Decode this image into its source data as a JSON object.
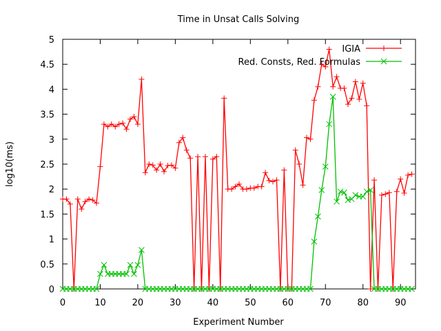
{
  "chart_data": {
    "type": "line",
    "title": "Time in Unsat Calls Solving",
    "xlabel": "Experiment Number",
    "ylabel": "log10(ms)",
    "xlim": [
      0,
      94
    ],
    "ylim": [
      0,
      5
    ],
    "xticks": [
      0,
      10,
      20,
      30,
      40,
      50,
      60,
      70,
      80,
      90
    ],
    "yticks": [
      0,
      0.5,
      1,
      1.5,
      2,
      2.5,
      3,
      3.5,
      4,
      4.5,
      5
    ],
    "ytick_labels": [
      "0",
      "0.5",
      "1",
      "1.5",
      "2",
      "2.5",
      "3",
      "3.5",
      "4",
      "4.5",
      "5"
    ],
    "grid": false,
    "legend_position": "top-right",
    "series": [
      {
        "name": "IGIA",
        "color": "#ff0000",
        "marker": "plus",
        "x": [
          0,
          1,
          2,
          3,
          4,
          5,
          6,
          7,
          8,
          9,
          10,
          11,
          12,
          13,
          14,
          15,
          16,
          17,
          18,
          19,
          20,
          21,
          22,
          23,
          24,
          25,
          26,
          27,
          28,
          29,
          30,
          31,
          32,
          33,
          34,
          35,
          36,
          37,
          38,
          39,
          40,
          41,
          42,
          43,
          44,
          45,
          46,
          47,
          48,
          49,
          50,
          51,
          52,
          53,
          54,
          55,
          56,
          57,
          58,
          59,
          60,
          61,
          62,
          63,
          64,
          65,
          66,
          67,
          68,
          69,
          70,
          71,
          72,
          73,
          74,
          75,
          76,
          77,
          78,
          79,
          80,
          81,
          82,
          83,
          84,
          85,
          86,
          87,
          88,
          89,
          90,
          91,
          92,
          93
        ],
        "y": [
          1.8,
          1.8,
          1.7,
          0,
          1.8,
          1.6,
          1.75,
          1.8,
          1.78,
          1.72,
          2.45,
          3.3,
          3.25,
          3.3,
          3.25,
          3.3,
          3.32,
          3.2,
          3.4,
          3.45,
          3.3,
          4.2,
          2.33,
          2.5,
          2.48,
          2.38,
          2.5,
          2.35,
          2.47,
          2.48,
          2.42,
          2.93,
          3.03,
          2.78,
          2.62,
          0,
          2.65,
          0,
          2.65,
          0,
          2.6,
          2.65,
          0,
          3.82,
          2.0,
          2.0,
          2.05,
          2.1,
          2.0,
          2.0,
          2.02,
          2.02,
          2.05,
          2.05,
          2.33,
          2.17,
          2.15,
          2.18,
          0,
          2.38,
          0,
          0,
          2.78,
          2.5,
          2.08,
          3.03,
          3.0,
          3.78,
          4.05,
          4.5,
          4.45,
          4.8,
          4.05,
          4.25,
          4.02,
          4.02,
          3.7,
          3.82,
          4.15,
          3.8,
          4.12,
          3.67,
          0,
          2.18,
          0,
          1.88,
          1.9,
          1.93,
          0,
          1.95,
          2.2,
          1.92,
          2.28,
          2.3
        ]
      },
      {
        "name": "Red. Consts, Red. Formulas",
        "color": "#00c000",
        "marker": "x",
        "x": [
          0,
          1,
          2,
          3,
          4,
          5,
          6,
          7,
          8,
          9,
          10,
          11,
          12,
          13,
          14,
          15,
          16,
          17,
          18,
          19,
          20,
          21,
          22,
          23,
          24,
          25,
          26,
          27,
          28,
          29,
          30,
          31,
          32,
          33,
          34,
          35,
          36,
          37,
          38,
          39,
          40,
          41,
          42,
          43,
          44,
          45,
          46,
          47,
          48,
          49,
          50,
          51,
          52,
          53,
          54,
          55,
          56,
          57,
          58,
          59,
          60,
          61,
          62,
          63,
          64,
          65,
          66,
          67,
          68,
          69,
          70,
          71,
          72,
          73,
          74,
          75,
          76,
          77,
          78,
          79,
          80,
          81,
          82,
          83,
          84,
          85,
          86,
          87,
          88,
          89,
          90,
          91,
          92,
          93
        ],
        "y": [
          0,
          0,
          0,
          0,
          0,
          0,
          0,
          0,
          0,
          0,
          0.3,
          0.48,
          0.3,
          0.3,
          0.3,
          0.3,
          0.3,
          0.3,
          0.48,
          0.3,
          0.48,
          0.78,
          0,
          0,
          0,
          0,
          0,
          0,
          0,
          0,
          0,
          0,
          0,
          0,
          0,
          0,
          0,
          0,
          0,
          0,
          0,
          0,
          0,
          0,
          0,
          0,
          0,
          0,
          0,
          0,
          0,
          0,
          0,
          0,
          0,
          0,
          0,
          0,
          0,
          0,
          0,
          0,
          0,
          0,
          0,
          0,
          0,
          0.95,
          1.45,
          1.98,
          2.45,
          3.3,
          3.85,
          1.75,
          1.95,
          1.93,
          1.78,
          1.8,
          1.88,
          1.85,
          1.85,
          1.95,
          1.98,
          0,
          0,
          0,
          0,
          0,
          0,
          0,
          0,
          0,
          0,
          0
        ]
      }
    ]
  }
}
